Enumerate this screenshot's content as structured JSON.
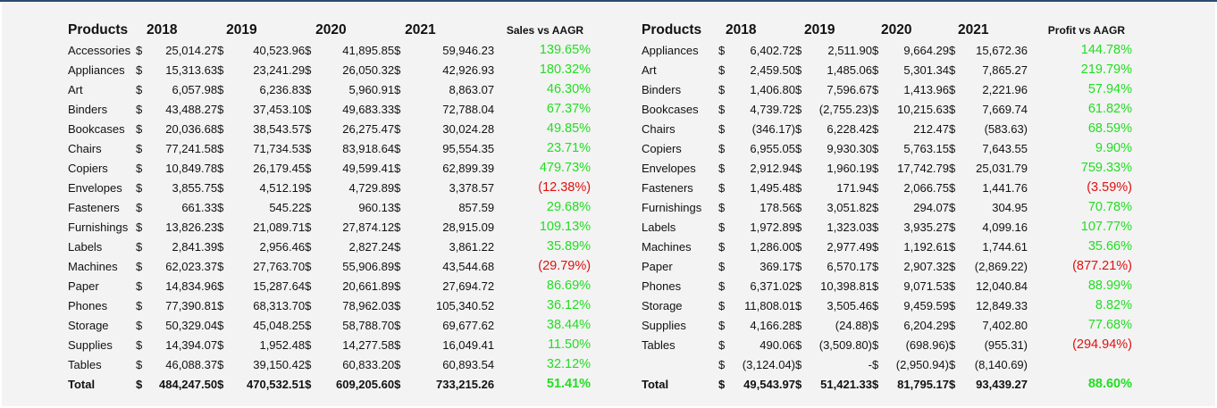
{
  "colors": {
    "positive": "#22dd22",
    "negative": "#e01010",
    "border": "#2d4a6b"
  },
  "sales": {
    "headers": [
      "Products",
      "2018",
      "2019",
      "2020",
      "2021",
      "Sales vs AAGR"
    ],
    "rows": [
      {
        "name": "Accessories",
        "v": [
          "25,014.27",
          "40,523.96",
          "41,895.85",
          "59,946.23"
        ],
        "pct": "139.65%",
        "neg": false
      },
      {
        "name": "Appliances",
        "v": [
          "15,313.63",
          "23,241.29",
          "26,050.32",
          "42,926.93"
        ],
        "pct": "180.32%",
        "neg": false
      },
      {
        "name": "Art",
        "v": [
          "6,057.98",
          "6,236.83",
          "5,960.91",
          "8,863.07"
        ],
        "pct": "46.30%",
        "neg": false
      },
      {
        "name": "Binders",
        "v": [
          "43,488.27",
          "37,453.10",
          "49,683.33",
          "72,788.04"
        ],
        "pct": "67.37%",
        "neg": false
      },
      {
        "name": "Bookcases",
        "v": [
          "20,036.68",
          "38,543.57",
          "26,275.47",
          "30,024.28"
        ],
        "pct": "49.85%",
        "neg": false
      },
      {
        "name": "Chairs",
        "v": [
          "77,241.58",
          "71,734.53",
          "83,918.64",
          "95,554.35"
        ],
        "pct": "23.71%",
        "neg": false
      },
      {
        "name": "Copiers",
        "v": [
          "10,849.78",
          "26,179.45",
          "49,599.41",
          "62,899.39"
        ],
        "pct": "479.73%",
        "neg": false
      },
      {
        "name": "Envelopes",
        "v": [
          "3,855.75",
          "4,512.19",
          "4,729.89",
          "3,378.57"
        ],
        "pct": "(12.38%)",
        "neg": true
      },
      {
        "name": "Fasteners",
        "v": [
          "661.33",
          "545.22",
          "960.13",
          "857.59"
        ],
        "pct": "29.68%",
        "neg": false
      },
      {
        "name": "Furnishings",
        "v": [
          "13,826.23",
          "21,089.71",
          "27,874.12",
          "28,915.09"
        ],
        "pct": "109.13%",
        "neg": false
      },
      {
        "name": "Labels",
        "v": [
          "2,841.39",
          "2,956.46",
          "2,827.24",
          "3,861.22"
        ],
        "pct": "35.89%",
        "neg": false
      },
      {
        "name": "Machines",
        "v": [
          "62,023.37",
          "27,763.70",
          "55,906.89",
          "43,544.68"
        ],
        "pct": "(29.79%)",
        "neg": true
      },
      {
        "name": "Paper",
        "v": [
          "14,834.96",
          "15,287.64",
          "20,661.89",
          "27,694.72"
        ],
        "pct": "86.69%",
        "neg": false
      },
      {
        "name": "Phones",
        "v": [
          "77,390.81",
          "68,313.70",
          "78,962.03",
          "105,340.52"
        ],
        "pct": "36.12%",
        "neg": false
      },
      {
        "name": "Storage",
        "v": [
          "50,329.04",
          "45,048.25",
          "58,788.70",
          "69,677.62"
        ],
        "pct": "38.44%",
        "neg": false
      },
      {
        "name": "Supplies",
        "v": [
          "14,394.07",
          "1,952.48",
          "14,277.58",
          "16,049.41"
        ],
        "pct": "11.50%",
        "neg": false
      },
      {
        "name": "Tables",
        "v": [
          "46,088.37",
          "39,150.42",
          "60,833.20",
          "60,893.54"
        ],
        "pct": "32.12%",
        "neg": false
      }
    ],
    "total": {
      "name": "Total",
      "v": [
        "484,247.50",
        "470,532.51",
        "609,205.60",
        "733,215.26"
      ],
      "pct": "51.41%",
      "neg": false
    }
  },
  "profit": {
    "headers": [
      "Products",
      "2018",
      "2019",
      "2020",
      "2021",
      "Profit vs AAGR"
    ],
    "rows": [
      {
        "name": "Appliances",
        "v": [
          "6,402.72",
          "2,511.90",
          "9,664.29",
          "15,672.36"
        ],
        "pct": "144.78%",
        "neg": false
      },
      {
        "name": "Art",
        "v": [
          "2,459.50",
          "1,485.06",
          "5,301.34",
          "7,865.27"
        ],
        "pct": "219.79%",
        "neg": false
      },
      {
        "name": "Binders",
        "v": [
          "1,406.80",
          "7,596.67",
          "1,413.96",
          "2,221.96"
        ],
        "pct": "57.94%",
        "neg": false
      },
      {
        "name": "Bookcases",
        "v": [
          "4,739.72",
          "(2,755.23)",
          "10,215.63",
          "7,669.74"
        ],
        "pct": "61.82%",
        "neg": false
      },
      {
        "name": "Chairs",
        "v": [
          "(346.17)",
          "6,228.42",
          "212.47",
          "(583.63)"
        ],
        "pct": "68.59%",
        "neg": false
      },
      {
        "name": "Copiers",
        "v": [
          "6,955.05",
          "9,930.30",
          "5,763.15",
          "7,643.55"
        ],
        "pct": "9.90%",
        "neg": false
      },
      {
        "name": "Envelopes",
        "v": [
          "2,912.94",
          "1,960.19",
          "17,742.79",
          "25,031.79"
        ],
        "pct": "759.33%",
        "neg": false
      },
      {
        "name": "Fasteners",
        "v": [
          "1,495.48",
          "171.94",
          "2,066.75",
          "1,441.76"
        ],
        "pct": "(3.59%)",
        "neg": true
      },
      {
        "name": "Furnishings",
        "v": [
          "178.56",
          "3,051.82",
          "294.07",
          "304.95"
        ],
        "pct": "70.78%",
        "neg": false
      },
      {
        "name": "Labels",
        "v": [
          "1,972.89",
          "1,323.03",
          "3,935.27",
          "4,099.16"
        ],
        "pct": "107.77%",
        "neg": false
      },
      {
        "name": "Machines",
        "v": [
          "1,286.00",
          "2,977.49",
          "1,192.61",
          "1,744.61"
        ],
        "pct": "35.66%",
        "neg": false
      },
      {
        "name": "Paper",
        "v": [
          "369.17",
          "6,570.17",
          "2,907.32",
          "(2,869.22)"
        ],
        "pct": "(877.21%)",
        "neg": true
      },
      {
        "name": "Phones",
        "v": [
          "6,371.02",
          "10,398.81",
          "9,071.53",
          "12,040.84"
        ],
        "pct": "88.99%",
        "neg": false
      },
      {
        "name": "Storage",
        "v": [
          "11,808.01",
          "3,505.46",
          "9,459.59",
          "12,849.33"
        ],
        "pct": "8.82%",
        "neg": false
      },
      {
        "name": "Supplies",
        "v": [
          "4,166.28",
          "(24.88)",
          "6,204.29",
          "7,402.80"
        ],
        "pct": "77.68%",
        "neg": false
      },
      {
        "name": "Tables",
        "v": [
          "490.06",
          "(3,509.80)",
          "(698.96)",
          "(955.31)"
        ],
        "pct": "(294.94%)",
        "neg": true
      },
      {
        "name": "",
        "v": [
          "(3,124.04)",
          "-",
          "(2,950.94)",
          "(8,140.69)"
        ],
        "pct": "",
        "neg": false
      }
    ],
    "total": {
      "name": "Total",
      "v": [
        "49,543.97",
        "51,421.33",
        "81,795.17",
        "93,439.27"
      ],
      "pct": "88.60%",
      "neg": false
    }
  },
  "currency_symbol": "$"
}
